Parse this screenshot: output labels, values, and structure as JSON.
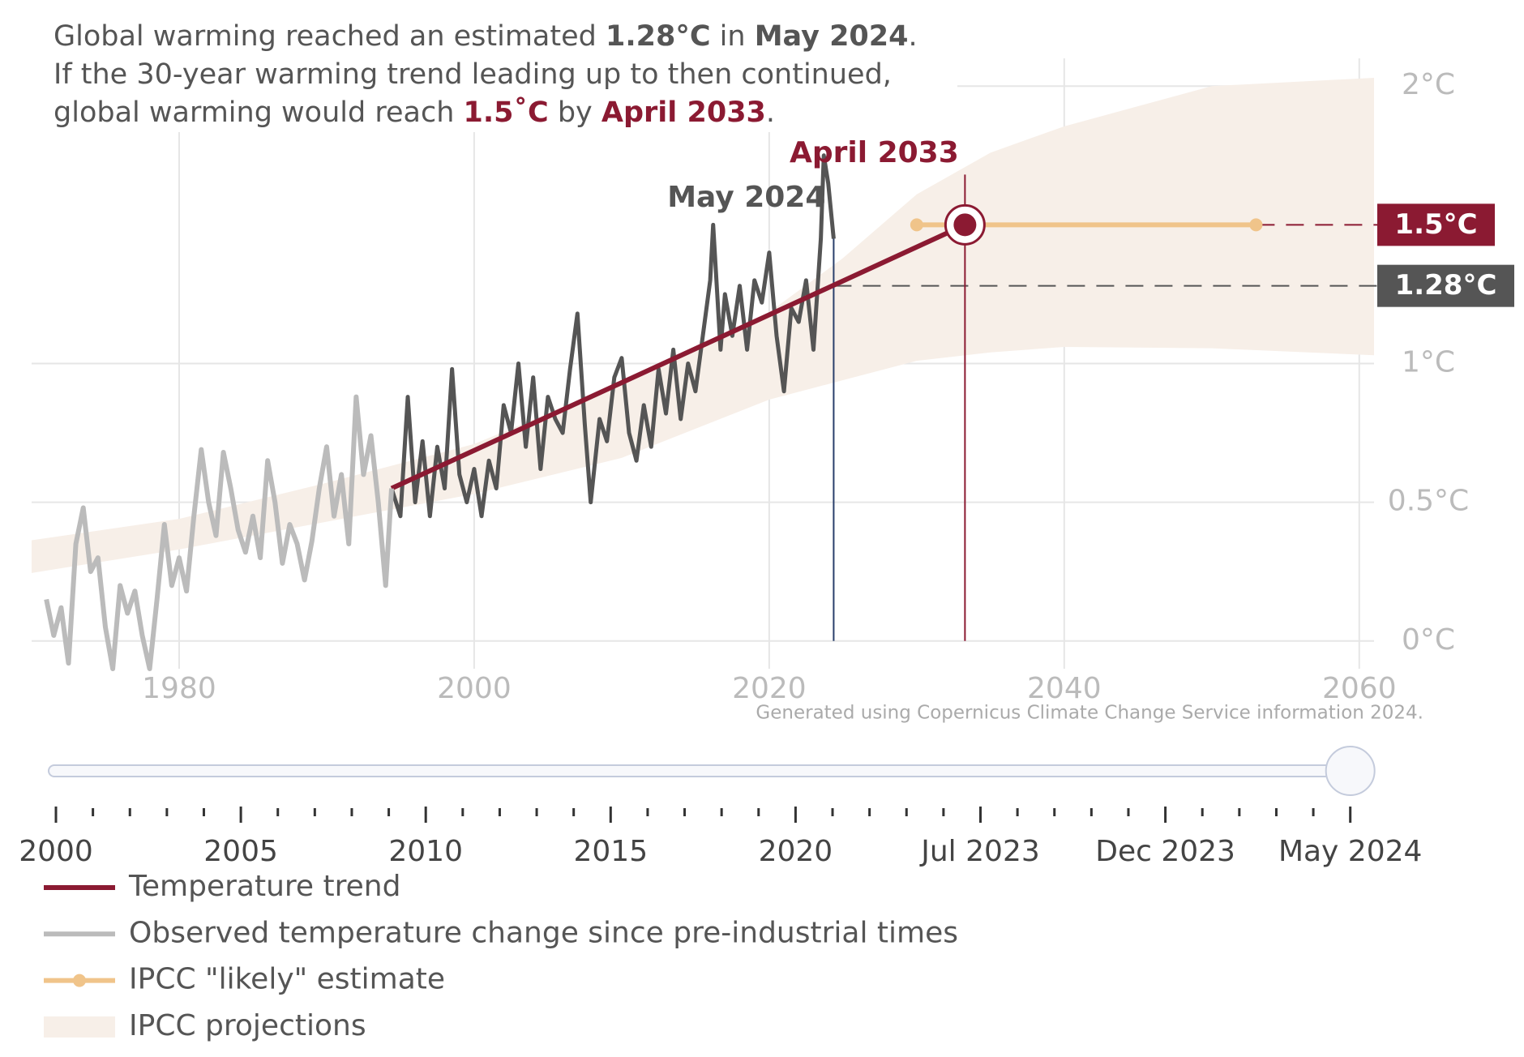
{
  "chart_data": {
    "type": "line",
    "title": [
      [
        {
          "text": "Global warming reached an estimated "
        },
        {
          "text": "1.28°C",
          "style": "bold"
        },
        {
          "text": " in "
        },
        {
          "text": "May 2024",
          "style": "bold"
        },
        {
          "text": "."
        }
      ],
      [
        {
          "text": "If the 30-year warming trend leading up to then continued,"
        }
      ],
      [
        {
          "text": "global warming would reach "
        },
        {
          "text": "1.5˚C",
          "style": "bold-red"
        },
        {
          "text": " by "
        },
        {
          "text": "April 2033",
          "style": "bold-red"
        },
        {
          "text": "."
        }
      ]
    ],
    "footnote": "Generated using Copernicus Climate Change Service information 2024.",
    "xlim": [
      1970,
      2061
    ],
    "xticks": [
      1980,
      2000,
      2020,
      2040,
      2060
    ],
    "ylim": [
      -0.1,
      2.1
    ],
    "yticks": [
      {
        "value": 0,
        "label": "0°C"
      },
      {
        "value": 0.5,
        "label": "0.5°C"
      },
      {
        "value": 1,
        "label": "1°C"
      },
      {
        "value": 2,
        "label": "2°C"
      }
    ],
    "grid": true,
    "series": [
      {
        "name": "Temperature trend",
        "color": "#8b1a32",
        "x": [
          1994.4,
          2033.27
        ],
        "values": [
          0.55,
          1.5
        ]
      },
      {
        "name": "Observed temperature change since pre-industrial times",
        "color": "#bbbbbb",
        "x": [
          1971.0,
          1971.5,
          1972.0,
          1972.5,
          1973.0,
          1973.5,
          1974.0,
          1974.5,
          1975.0,
          1975.5,
          1976.0,
          1976.5,
          1977.0,
          1977.5,
          1978.0,
          1978.5,
          1979.0,
          1979.5,
          1980.0,
          1980.5,
          1981.0,
          1981.5,
          1982.0,
          1982.5,
          1983.0,
          1983.5,
          1984.0,
          1984.5,
          1985.0,
          1985.5,
          1986.0,
          1986.5,
          1987.0,
          1987.5,
          1988.0,
          1988.5,
          1989.0,
          1989.5,
          1990.0,
          1990.5,
          1991.0,
          1991.5,
          1992.0,
          1992.5,
          1993.0,
          1993.5,
          1994.0,
          1994.4
        ],
        "values": [
          0.15,
          0.02,
          0.12,
          -0.08,
          0.35,
          0.48,
          0.25,
          0.3,
          0.05,
          -0.1,
          0.2,
          0.1,
          0.18,
          0.02,
          -0.1,
          0.15,
          0.42,
          0.2,
          0.3,
          0.18,
          0.45,
          0.69,
          0.5,
          0.38,
          0.68,
          0.55,
          0.4,
          0.32,
          0.45,
          0.3,
          0.65,
          0.5,
          0.28,
          0.42,
          0.35,
          0.22,
          0.36,
          0.55,
          0.7,
          0.45,
          0.6,
          0.35,
          0.88,
          0.6,
          0.74,
          0.5,
          0.2,
          0.55
        ]
      },
      {
        "name": "IPCC \"likely\" estimate",
        "color": "#f0c48a",
        "dots": true,
        "x": [
          2030,
          2053
        ],
        "values": [
          1.5,
          1.5
        ]
      },
      {
        "name": "IPCC projections",
        "color": "#f7efe8",
        "x": [
          1970,
          1980,
          1990,
          2000,
          2010,
          2020,
          2025,
          2030,
          2035,
          2040,
          2050,
          2061
        ],
        "lower": [
          0.245,
          0.33,
          0.43,
          0.53,
          0.66,
          0.87,
          0.94,
          1.01,
          1.04,
          1.06,
          1.055,
          1.03
        ],
        "upper": [
          0.363,
          0.44,
          0.57,
          0.71,
          0.93,
          1.185,
          1.38,
          1.61,
          1.76,
          1.855,
          2.0,
          2.03
        ]
      },
      {
        "color": "#555555",
        "x": [
          1994.4,
          1995.0,
          1995.5,
          1996.0,
          1996.5,
          1997.0,
          1997.5,
          1998.0,
          1998.5,
          1999.0,
          1999.5,
          2000.0,
          2000.5,
          2001.0,
          2001.5,
          2002.0,
          2002.5,
          2003.0,
          2003.5,
          2004.0,
          2004.5,
          2005.0,
          2005.5,
          2006.0,
          2006.5,
          2007.0,
          2007.5,
          2007.9,
          2008.5,
          2009.0,
          2009.5,
          2010.0,
          2010.5,
          2011.0,
          2011.5,
          2012.0,
          2012.5,
          2013.0,
          2013.5,
          2014.0,
          2014.5,
          2015.0,
          2015.5,
          2016.0,
          2016.2,
          2016.7,
          2017.0,
          2017.5,
          2018.0,
          2018.5,
          2019.0,
          2019.5,
          2020.0,
          2020.5,
          2021.0,
          2021.5,
          2022.0,
          2022.5,
          2023.0,
          2023.5,
          2023.7,
          2024.0,
          2024.37
        ],
        "values": [
          0.55,
          0.45,
          0.88,
          0.5,
          0.72,
          0.45,
          0.7,
          0.55,
          0.98,
          0.6,
          0.5,
          0.62,
          0.45,
          0.65,
          0.55,
          0.85,
          0.75,
          1.0,
          0.7,
          0.95,
          0.62,
          0.88,
          0.8,
          0.75,
          0.98,
          1.18,
          0.78,
          0.5,
          0.8,
          0.72,
          0.95,
          1.02,
          0.75,
          0.65,
          0.85,
          0.7,
          0.98,
          0.82,
          1.05,
          0.8,
          1.0,
          0.9,
          1.1,
          1.3,
          1.5,
          1.05,
          1.25,
          1.1,
          1.28,
          1.05,
          1.3,
          1.22,
          1.4,
          1.1,
          0.9,
          1.2,
          1.15,
          1.3,
          1.05,
          1.45,
          1.75,
          1.65,
          1.45
        ]
      }
    ],
    "markers": [
      {
        "label": "May 2024",
        "x": 2024.37,
        "level": {
          "value": 1.28,
          "label": "1.28°C"
        },
        "color": "#555555",
        "line_color": "#2a3f6b"
      },
      {
        "label": "April 2033",
        "x": 2033.27,
        "level": {
          "value": 1.5,
          "label": "1.5°C"
        },
        "color": "#8b1a32",
        "line_color": "#8b1a32",
        "dot": true
      }
    ],
    "slider": {
      "labels": [
        "2000",
        "2005",
        "2010",
        "2015",
        "2020",
        "Jul 2023",
        "Dec 2023",
        "May 2024"
      ]
    }
  }
}
